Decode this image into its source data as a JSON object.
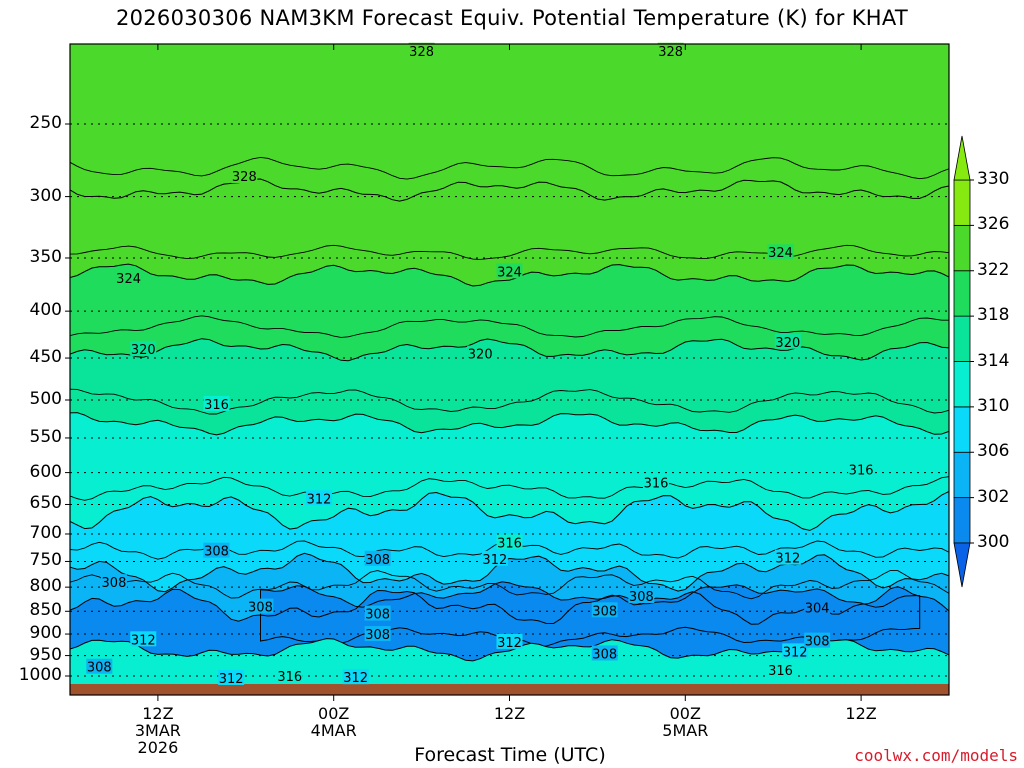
{
  "chart_data": {
    "type": "heatmap",
    "title": "2026030306 NAM3KM Forecast Equiv. Potential Temperature (K) for KHAT",
    "xlabel": "Forecast Time (UTC)",
    "ylabel": "",
    "credit": "coolwx.com/models",
    "y_scale": "log-pressure (hPa, inverted)",
    "ylim": [
      1020,
      200
    ],
    "y_ticks": [
      {
        "value": 250,
        "label": "250"
      },
      {
        "value": 300,
        "label": "300"
      },
      {
        "value": 350,
        "label": "350"
      },
      {
        "value": 400,
        "label": "400"
      },
      {
        "value": 450,
        "label": "450"
      },
      {
        "value": 500,
        "label": "500"
      },
      {
        "value": 550,
        "label": "550"
      },
      {
        "value": 600,
        "label": "600"
      },
      {
        "value": 650,
        "label": "650"
      },
      {
        "value": 700,
        "label": "700"
      },
      {
        "value": 750,
        "label": "750"
      },
      {
        "value": 800,
        "label": "800"
      },
      {
        "value": 850,
        "label": "850"
      },
      {
        "value": 900,
        "label": "900"
      },
      {
        "value": 950,
        "label": "950"
      },
      {
        "value": 1000,
        "label": "1000"
      }
    ],
    "xlim": [
      0,
      60
    ],
    "x_ticks": [
      {
        "value": 6,
        "lines": [
          "12Z",
          "3MAR",
          "2026"
        ]
      },
      {
        "value": 18,
        "lines": [
          "00Z",
          "4MAR"
        ]
      },
      {
        "value": 30,
        "lines": [
          "12Z"
        ]
      },
      {
        "value": 42,
        "lines": [
          "00Z",
          "5MAR"
        ]
      },
      {
        "value": 54,
        "lines": [
          "12Z"
        ]
      }
    ],
    "grid": "dotted horizontal lines at pressure levels",
    "colorbar": {
      "levels": [
        300,
        302,
        306,
        310,
        314,
        318,
        322,
        326,
        330
      ],
      "labels": [
        "300",
        "302",
        "306",
        "310",
        "314",
        "318",
        "322",
        "326",
        "330"
      ],
      "colors": [
        "#0a62e6",
        "#0a8aef",
        "#0ab4f5",
        "#0ad9f9",
        "#08eed0",
        "#0ae49a",
        "#1fdc5c",
        "#4bd92c",
        "#86ea10"
      ],
      "extend": "both"
    },
    "contour_levels": [
      {
        "value": 328,
        "pressure": 295,
        "label": "328"
      },
      {
        "value": 324,
        "pressure": 365,
        "label": "324"
      },
      {
        "value": 320,
        "pressure": 440,
        "label": "320"
      },
      {
        "value": 316,
        "pressure": 530,
        "label": "316"
      },
      {
        "value": 312,
        "pressure": 660,
        "label": "312"
      },
      {
        "value": 308,
        "pressure": 770,
        "label": "308"
      },
      {
        "value": 304,
        "pressure": 840,
        "label": "304"
      }
    ],
    "contour_labels": [
      {
        "text": "328",
        "x": 24.0,
        "p": 208
      },
      {
        "text": "328",
        "x": 41.0,
        "p": 208
      },
      {
        "text": "328",
        "x": 11.9,
        "p": 285
      },
      {
        "text": "324",
        "x": 4.0,
        "p": 368
      },
      {
        "text": "324",
        "x": 30.0,
        "p": 362
      },
      {
        "text": "324",
        "x": 48.5,
        "p": 345
      },
      {
        "text": "320",
        "x": 5.0,
        "p": 440
      },
      {
        "text": "320",
        "x": 28.0,
        "p": 445
      },
      {
        "text": "320",
        "x": 49.0,
        "p": 432
      },
      {
        "text": "316",
        "x": 10.0,
        "p": 505
      },
      {
        "text": "316",
        "x": 40.0,
        "p": 615
      },
      {
        "text": "316",
        "x": 54.0,
        "p": 595
      },
      {
        "text": "316",
        "x": 30.0,
        "p": 715
      },
      {
        "text": "316",
        "x": 48.5,
        "p": 985
      },
      {
        "text": "316",
        "x": 15.0,
        "p": 1000
      },
      {
        "text": "312",
        "x": 17.0,
        "p": 640
      },
      {
        "text": "312",
        "x": 29.0,
        "p": 745
      },
      {
        "text": "312",
        "x": 49.0,
        "p": 743
      },
      {
        "text": "312",
        "x": 5.0,
        "p": 912
      },
      {
        "text": "312",
        "x": 30.0,
        "p": 918
      },
      {
        "text": "312",
        "x": 49.5,
        "p": 940
      },
      {
        "text": "312",
        "x": 11.0,
        "p": 1005
      },
      {
        "text": "312",
        "x": 19.5,
        "p": 1003
      },
      {
        "text": "308",
        "x": 10.0,
        "p": 730
      },
      {
        "text": "308",
        "x": 3.0,
        "p": 790
      },
      {
        "text": "308",
        "x": 21.0,
        "p": 745
      },
      {
        "text": "308",
        "x": 13.0,
        "p": 840
      },
      {
        "text": "308",
        "x": 21.0,
        "p": 855
      },
      {
        "text": "308",
        "x": 21.0,
        "p": 900
      },
      {
        "text": "308",
        "x": 39.0,
        "p": 818
      },
      {
        "text": "308",
        "x": 36.5,
        "p": 848
      },
      {
        "text": "308",
        "x": 36.5,
        "p": 945
      },
      {
        "text": "308",
        "x": 51.0,
        "p": 915
      },
      {
        "text": "308",
        "x": 2.0,
        "p": 977
      },
      {
        "text": "304",
        "x": 51.0,
        "p": 842
      }
    ],
    "terrain_surface_pressure": 1015
  }
}
